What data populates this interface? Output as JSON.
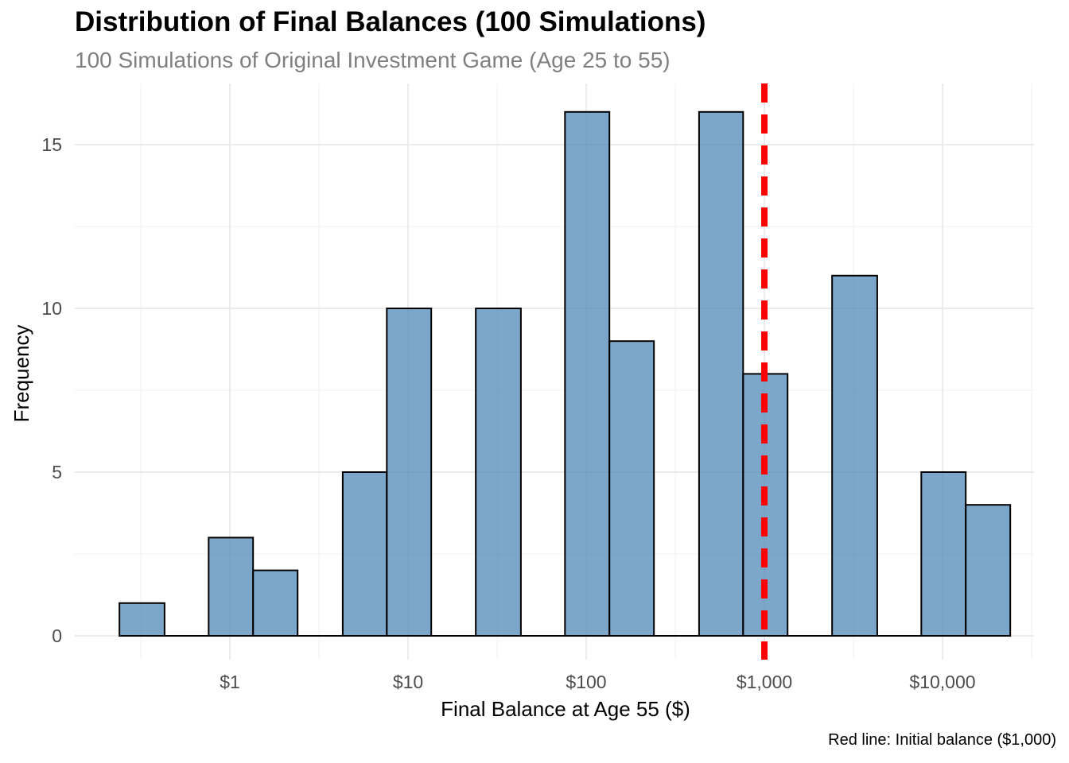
{
  "chart_data": {
    "type": "bar",
    "title": "Distribution of Final Balances (100 Simulations)",
    "subtitle": "100 Simulations of Original Investment Game (Age 25 to 55)",
    "xlabel": "Final Balance at Age 55 ($)",
    "ylabel": "Frequency",
    "caption": "Red line: Initial balance ($1,000)",
    "x_scale": "log10",
    "x_ticks": [
      {
        "value": 1,
        "label": "$1"
      },
      {
        "value": 10,
        "label": "$10"
      },
      {
        "value": 100,
        "label": "$100"
      },
      {
        "value": 1000,
        "label": "$1,000"
      },
      {
        "value": 10000,
        "label": "$10,000"
      }
    ],
    "y_ticks": [
      {
        "value": 0,
        "label": "0"
      },
      {
        "value": 5,
        "label": "5"
      },
      {
        "value": 10,
        "label": "10"
      },
      {
        "value": 15,
        "label": "15"
      }
    ],
    "ylim": [
      0,
      16.5
    ],
    "grid": true,
    "bins": [
      {
        "x_min": 0.24,
        "x_max": 0.43,
        "count": 1
      },
      {
        "x_min": 0.43,
        "x_max": 0.76,
        "count": 0
      },
      {
        "x_min": 0.76,
        "x_max": 1.35,
        "count": 3
      },
      {
        "x_min": 1.35,
        "x_max": 2.4,
        "count": 2
      },
      {
        "x_min": 2.4,
        "x_max": 4.3,
        "count": 0
      },
      {
        "x_min": 4.3,
        "x_max": 7.6,
        "count": 5
      },
      {
        "x_min": 7.6,
        "x_max": 13.5,
        "count": 10
      },
      {
        "x_min": 13.5,
        "x_max": 24,
        "count": 0
      },
      {
        "x_min": 24,
        "x_max": 43,
        "count": 10
      },
      {
        "x_min": 43,
        "x_max": 76,
        "count": 0
      },
      {
        "x_min": 76,
        "x_max": 135,
        "count": 16
      },
      {
        "x_min": 135,
        "x_max": 240,
        "count": 9
      },
      {
        "x_min": 240,
        "x_max": 430,
        "count": 0
      },
      {
        "x_min": 430,
        "x_max": 760,
        "count": 16
      },
      {
        "x_min": 760,
        "x_max": 1350,
        "count": 8
      },
      {
        "x_min": 1350,
        "x_max": 2400,
        "count": 0
      },
      {
        "x_min": 2400,
        "x_max": 4300,
        "count": 11
      },
      {
        "x_min": 4300,
        "x_max": 7600,
        "count": 0
      },
      {
        "x_min": 7600,
        "x_max": 13500,
        "count": 5
      },
      {
        "x_min": 13500,
        "x_max": 24000,
        "count": 4
      }
    ],
    "bar_color": "#4682b4",
    "reference_line": {
      "value": 1000,
      "color": "#ff0000",
      "style": "dashed"
    }
  }
}
